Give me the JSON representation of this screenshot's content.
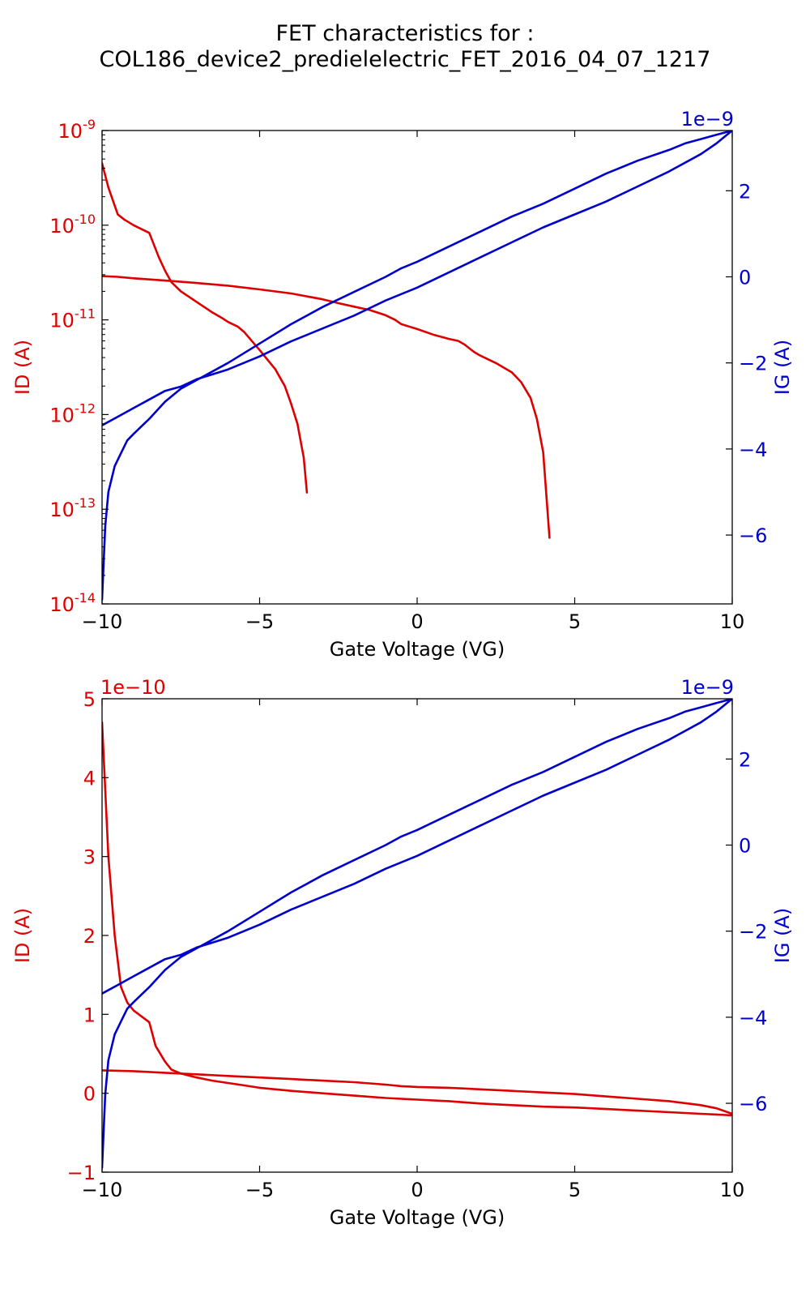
{
  "title": {
    "line1": "FET characteristics for :",
    "line2": "COL186_device2_predielelectric_FET_2016_04_07_1217"
  },
  "colors": {
    "id": "#dd0000",
    "ig": "#0000cc",
    "axis": "#000000"
  },
  "chart_data": [
    {
      "type": "line",
      "id": "top",
      "xlabel": "Gate Voltage (VG)",
      "xlim": [
        -10,
        10
      ],
      "xticks": [
        -10,
        -5,
        0,
        5,
        10
      ],
      "xtick_labels": [
        "−10",
        "−5",
        "0",
        "5",
        "10"
      ],
      "left_axis": {
        "label": "ID (A)",
        "scale": "log",
        "ylim": [
          1e-14,
          1e-09
        ],
        "ticks": [
          1e-14,
          1e-13,
          1e-12,
          1e-11,
          1e-10,
          1e-09
        ],
        "tick_bases": [
          "10",
          "10",
          "10",
          "10",
          "10",
          "10"
        ],
        "tick_exps": [
          "-14",
          "-13",
          "-12",
          "-11",
          "-10",
          "-9"
        ],
        "offset_text": ""
      },
      "right_axis": {
        "label": "IG (A)",
        "scale": "linear",
        "ylim": [
          -7.6,
          3.4
        ],
        "ticks": [
          -6,
          -4,
          -2,
          0,
          2
        ],
        "tick_labels": [
          "−6",
          "−4",
          "−2",
          "0",
          "2"
        ],
        "offset_text": "1e−9"
      },
      "series": [
        {
          "axis": "left",
          "color": "id",
          "x": [
            -10,
            -9.8,
            -9.5,
            -9.3,
            -9,
            -8.5,
            -8.2,
            -8,
            -7.8,
            -7.5,
            -7,
            -6.5,
            -6.2,
            -6,
            -5.7,
            -5.5,
            -5,
            -4.5,
            -4.2,
            -4,
            -3.8,
            -3.6,
            -3.5
          ],
          "y": [
            4.5e-10,
            2.5e-10,
            1.3e-10,
            1.15e-10,
            1e-10,
            8.3e-11,
            4.6e-11,
            3.3e-11,
            2.5e-11,
            2e-11,
            1.55e-11,
            1.2e-11,
            1.05e-11,
            9.5e-12,
            8.5e-12,
            7.5e-12,
            4.8e-12,
            3e-12,
            2e-12,
            1.3e-12,
            8e-13,
            3.5e-13,
            1.5e-13
          ]
        },
        {
          "axis": "left",
          "color": "id",
          "x": [
            -10,
            -9.5,
            -9,
            -8,
            -7,
            -6,
            -5,
            -4,
            -3,
            -2.5,
            -2,
            -1.5,
            -1,
            -0.7,
            -0.5,
            0,
            0.5,
            1,
            1.3,
            1.5,
            1.8,
            2,
            2.5,
            3,
            3.3,
            3.6,
            3.8,
            4,
            4.2
          ],
          "y": [
            2.9e-11,
            2.85e-11,
            2.75e-11,
            2.6e-11,
            2.45e-11,
            2.3e-11,
            2.1e-11,
            1.9e-11,
            1.65e-11,
            1.5e-11,
            1.38e-11,
            1.27e-11,
            1.12e-11,
            1e-11,
            9e-12,
            8e-12,
            7e-12,
            6.3e-12,
            6e-12,
            5.5e-12,
            4.6e-12,
            4.2e-12,
            3.5e-12,
            2.8e-12,
            2.2e-12,
            1.5e-12,
            9e-13,
            4e-13,
            5e-14
          ]
        },
        {
          "axis": "right",
          "color": "ig",
          "x": [
            -10,
            -9.9,
            -9.8,
            -9.6,
            -9.4,
            -9.2,
            -9,
            -8.5,
            -8,
            -7.5,
            -7,
            -6,
            -5,
            -4,
            -3,
            -2,
            -1,
            -0.5,
            0,
            1,
            2,
            3,
            4,
            5,
            6,
            7,
            8,
            8.5,
            9,
            9.5,
            10
          ],
          "y": [
            -7.5,
            -5.8,
            -5.0,
            -4.4,
            -4.1,
            -3.8,
            -3.65,
            -3.3,
            -2.9,
            -2.6,
            -2.4,
            -2.0,
            -1.55,
            -1.1,
            -0.7,
            -0.35,
            0.0,
            0.2,
            0.35,
            0.7,
            1.05,
            1.4,
            1.7,
            2.05,
            2.4,
            2.7,
            2.95,
            3.1,
            3.2,
            3.3,
            3.4
          ]
        },
        {
          "axis": "right",
          "color": "ig",
          "x": [
            -10,
            -9.5,
            -9,
            -8.5,
            -8,
            -7.5,
            -7,
            -6,
            -5,
            -4,
            -3,
            -2,
            -1,
            0,
            1,
            2,
            3,
            4,
            5,
            6,
            7,
            8,
            9,
            9.5,
            10
          ],
          "y": [
            -3.45,
            -3.25,
            -3.05,
            -2.85,
            -2.65,
            -2.55,
            -2.38,
            -2.15,
            -1.85,
            -1.5,
            -1.2,
            -0.9,
            -0.55,
            -0.25,
            0.1,
            0.45,
            0.8,
            1.15,
            1.45,
            1.75,
            2.1,
            2.45,
            2.85,
            3.1,
            3.4
          ]
        }
      ]
    },
    {
      "type": "line",
      "id": "bottom",
      "xlabel": "Gate Voltage (VG)",
      "xlim": [
        -10,
        10
      ],
      "xticks": [
        -10,
        -5,
        0,
        5,
        10
      ],
      "xtick_labels": [
        "−10",
        "−5",
        "0",
        "5",
        "10"
      ],
      "left_axis": {
        "label": "ID (A)",
        "scale": "linear",
        "ylim": [
          -1,
          5
        ],
        "ticks": [
          -1,
          0,
          1,
          2,
          3,
          4,
          5
        ],
        "tick_labels": [
          "−1",
          "0",
          "1",
          "2",
          "3",
          "4",
          "5"
        ],
        "offset_text": "1e−10"
      },
      "right_axis": {
        "label": "IG (A)",
        "scale": "linear",
        "ylim": [
          -7.6,
          3.4
        ],
        "ticks": [
          -6,
          -4,
          -2,
          0,
          2
        ],
        "tick_labels": [
          "−6",
          "−4",
          "−2",
          "0",
          "2"
        ],
        "offset_text": "1e−9"
      },
      "series": [
        {
          "axis": "left",
          "color": "id",
          "x": [
            -10,
            -9.8,
            -9.6,
            -9.4,
            -9.2,
            -9,
            -8.5,
            -8.3,
            -8,
            -7.8,
            -7.5,
            -7,
            -6.5,
            -6,
            -5.5,
            -5,
            -4,
            -3,
            -2,
            -1,
            0,
            1,
            2,
            3,
            4,
            5,
            6,
            7,
            8,
            9,
            9.5,
            10
          ],
          "y": [
            4.7,
            3.0,
            2.0,
            1.35,
            1.15,
            1.05,
            0.9,
            0.6,
            0.4,
            0.3,
            0.25,
            0.2,
            0.16,
            0.13,
            0.1,
            0.07,
            0.03,
            0.0,
            -0.03,
            -0.06,
            -0.08,
            -0.1,
            -0.13,
            -0.15,
            -0.17,
            -0.18,
            -0.2,
            -0.22,
            -0.24,
            -0.26,
            -0.27,
            -0.28
          ]
        },
        {
          "axis": "left",
          "color": "id",
          "x": [
            -10,
            -9,
            -8,
            -7,
            -6,
            -5,
            -4,
            -3,
            -2,
            -1,
            -0.5,
            0,
            1,
            1.5,
            2,
            3,
            4,
            5,
            6,
            7,
            8,
            9,
            9.5,
            10
          ],
          "y": [
            0.29,
            0.28,
            0.26,
            0.24,
            0.22,
            0.2,
            0.18,
            0.16,
            0.14,
            0.11,
            0.09,
            0.08,
            0.07,
            0.06,
            0.05,
            0.03,
            0.01,
            -0.01,
            -0.04,
            -0.07,
            -0.1,
            -0.15,
            -0.19,
            -0.26
          ]
        },
        {
          "axis": "right",
          "color": "ig",
          "x": [
            -10,
            -9.9,
            -9.8,
            -9.6,
            -9.4,
            -9.2,
            -9,
            -8.5,
            -8,
            -7.5,
            -7,
            -6,
            -5,
            -4,
            -3,
            -2,
            -1,
            -0.5,
            0,
            1,
            2,
            3,
            4,
            5,
            6,
            7,
            8,
            8.5,
            9,
            9.5,
            10
          ],
          "y": [
            -7.5,
            -5.8,
            -5.0,
            -4.4,
            -4.1,
            -3.8,
            -3.65,
            -3.3,
            -2.9,
            -2.6,
            -2.4,
            -2.0,
            -1.55,
            -1.1,
            -0.7,
            -0.35,
            0.0,
            0.2,
            0.35,
            0.7,
            1.05,
            1.4,
            1.7,
            2.05,
            2.4,
            2.7,
            2.95,
            3.1,
            3.2,
            3.3,
            3.4
          ]
        },
        {
          "axis": "right",
          "color": "ig",
          "x": [
            -10,
            -9.5,
            -9,
            -8.5,
            -8,
            -7.5,
            -7,
            -6,
            -5,
            -4,
            -3,
            -2,
            -1,
            0,
            1,
            2,
            3,
            4,
            5,
            6,
            7,
            8,
            9,
            9.5,
            10
          ],
          "y": [
            -3.45,
            -3.25,
            -3.05,
            -2.85,
            -2.65,
            -2.55,
            -2.38,
            -2.15,
            -1.85,
            -1.5,
            -1.2,
            -0.9,
            -0.55,
            -0.25,
            0.1,
            0.45,
            0.8,
            1.15,
            1.45,
            1.75,
            2.1,
            2.45,
            2.85,
            3.1,
            3.4
          ]
        }
      ]
    }
  ]
}
